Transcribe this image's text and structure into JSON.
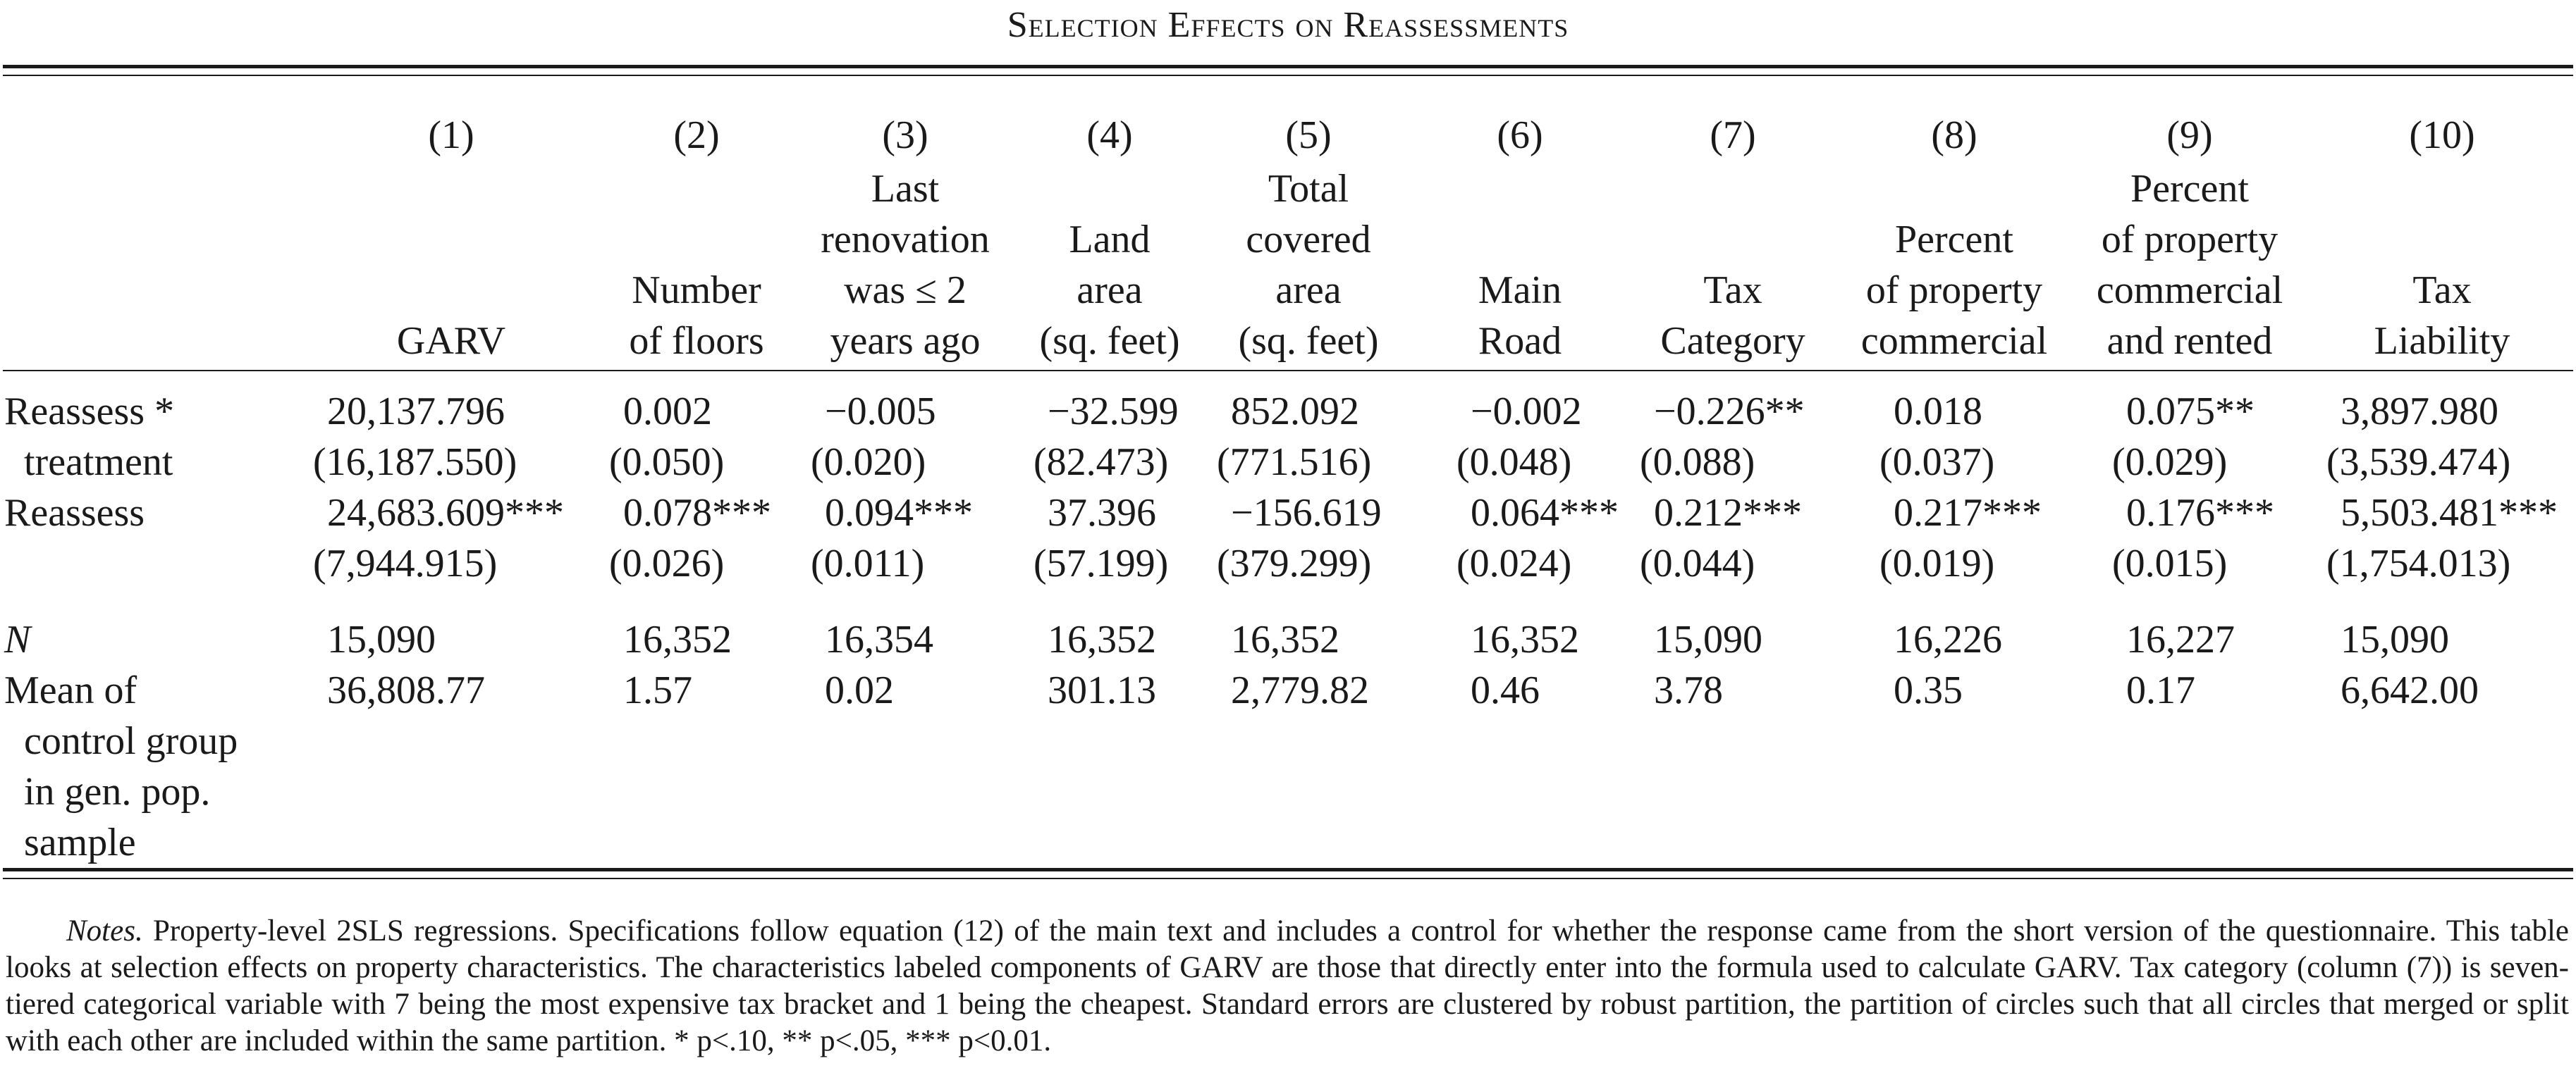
{
  "title": "Selection Effects on Reassessments",
  "columns": [
    {
      "num": "(1)",
      "label_lines": [
        "GARV"
      ]
    },
    {
      "num": "(2)",
      "label_lines": [
        "Number",
        "of floors"
      ]
    },
    {
      "num": "(3)",
      "label_lines": [
        "Last",
        "renovation",
        "was ≤ 2",
        "years ago"
      ]
    },
    {
      "num": "(4)",
      "label_lines": [
        "Land",
        "area",
        "(sq. feet)"
      ]
    },
    {
      "num": "(5)",
      "label_lines": [
        "Total",
        "covered",
        "area",
        "(sq. feet)"
      ]
    },
    {
      "num": "(6)",
      "label_lines": [
        "Main",
        "Road"
      ]
    },
    {
      "num": "(7)",
      "label_lines": [
        "Tax",
        "Category"
      ]
    },
    {
      "num": "(8)",
      "label_lines": [
        "Percent",
        "of property",
        "commercial"
      ]
    },
    {
      "num": "(9)",
      "label_lines": [
        "Percent",
        "of property",
        "commercial",
        "and rented"
      ]
    },
    {
      "num": "(10)",
      "label_lines": [
        "Tax",
        "Liability"
      ]
    }
  ],
  "rows": [
    {
      "label_lines": [
        "Reassess *",
        "  treatment"
      ],
      "coef": [
        "20,137.796",
        "0.002",
        "−0.005",
        "−32.599",
        "852.092",
        "−0.002",
        "−0.226**",
        "0.018",
        "0.075**",
        "3,897.980"
      ],
      "se": [
        "(16,187.550)",
        "(0.050)",
        "(0.020)",
        "(82.473)",
        "(771.516)",
        "(0.048)",
        "(0.088)",
        "(0.037)",
        "(0.029)",
        "(3,539.474)"
      ]
    },
    {
      "label_lines": [
        "Reassess"
      ],
      "coef": [
        "24,683.609***",
        "0.078***",
        "0.094***",
        "37.396",
        "−156.619",
        "0.064***",
        "0.212***",
        "0.217***",
        "0.176***",
        "5,503.481***"
      ],
      "se": [
        "(7,944.915)",
        "(0.026)",
        "(0.011)",
        "(57.199)",
        "(379.299)",
        "(0.024)",
        "(0.044)",
        "(0.019)",
        "(0.015)",
        "(1,754.013)"
      ]
    }
  ],
  "n_row": {
    "label": "N",
    "values": [
      "15,090",
      "16,352",
      "16,354",
      "16,352",
      "16,352",
      "16,352",
      "15,090",
      "16,226",
      "16,227",
      "15,090"
    ]
  },
  "mean_row": {
    "label_lines": [
      "Mean of",
      "  control group",
      "  in gen. pop.",
      "  sample"
    ],
    "values": [
      "36,808.77",
      "1.57",
      "0.02",
      "301.13",
      "2,779.82",
      "0.46",
      "3.78",
      "0.35",
      "0.17",
      "6,642.00"
    ]
  },
  "notes": {
    "lead": "Notes.",
    "text": " Property-level 2SLS regressions. Specifications follow equation (12) of the main text and includes a control for whether the response came from the short version of the questionnaire. This table looks at selection effects on property characteristics. The characteristics labeled components of GARV are those that directly enter into the formula used to calculate GARV. Tax category (column (7)) is seven-tiered categorical variable with 7 being the most expensive tax bracket and 1 being the cheapest. Standard errors are clustered by robust partition, the partition of circles such that all circles that merged or split with each other are included within the same partition. * p<.10, ** p<.05, *** p<0.01."
  }
}
